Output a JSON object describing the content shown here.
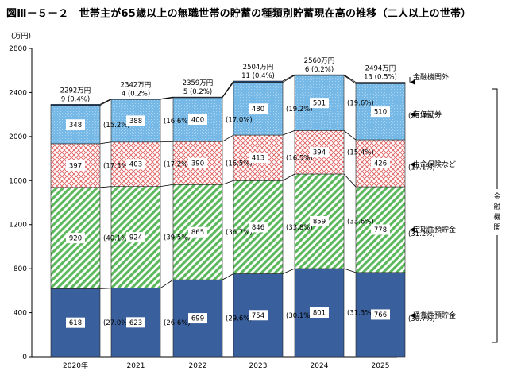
{
  "title": "図Ⅲ－５－２　世帯主が65歳以上の無職世帯の貯蓄の種類別貯蓄現在高の推移（二人以上の世帯）",
  "colors": {
    "tsuka": "#3a5f9d",
    "teiki": "#5cb85c",
    "seimei": "#e06060",
    "yuka": "#77b9e6",
    "other": "#1f4f8f",
    "line": "#000000"
  },
  "chart_data": {
    "type": "bar",
    "stacked": true,
    "unit_label": "(万円)",
    "ylim": [
      0,
      2800
    ],
    "yticks": [
      "0",
      "400",
      "800",
      "1200",
      "1600",
      "2000",
      "2400",
      "2800"
    ],
    "categories": [
      "2020年",
      "2021",
      "2022",
      "2023",
      "2024",
      "2025"
    ],
    "totals": [
      "2292万円",
      "2342万円",
      "2359万円",
      "2504万円",
      "2560万円",
      "2494万円"
    ],
    "series": [
      {
        "name": "通貨性預貯金",
        "values": [
          618,
          623,
          699,
          754,
          801,
          766
        ],
        "pct": [
          "(27.0%)",
          "(26.6%)",
          "(29.6%)",
          "(30.1%)",
          "(31.3%)",
          "(30.7%)"
        ]
      },
      {
        "name": "定期性預貯金",
        "values": [
          920,
          924,
          865,
          846,
          859,
          778
        ],
        "pct": [
          "(40.1%)",
          "(39.5%)",
          "(36.7%)",
          "(33.8%)",
          "(33.6%)",
          "(31.2%)"
        ]
      },
      {
        "name": "生命保険など",
        "values": [
          397,
          403,
          390,
          413,
          394,
          426
        ],
        "pct": [
          "(17.3%)",
          "(17.2%)",
          "(16.5%)",
          "(16.5%)",
          "(15.4%)",
          "(17.1%)"
        ]
      },
      {
        "name": "有価証券",
        "values": [
          348,
          388,
          400,
          480,
          501,
          510
        ],
        "pct": [
          "(15.2%)",
          "(16.6%)",
          "(17.0%)",
          "(19.2%)",
          "(19.6%)",
          "(20.4%)"
        ]
      },
      {
        "name": "金融機関外",
        "values": [
          9,
          4,
          5,
          11,
          6,
          13
        ],
        "pct": [
          "(0.4%)",
          "(0.2%)",
          "(0.2%)",
          "(0.4%)",
          "(0.2%)",
          "(0.5%)"
        ]
      }
    ],
    "bracket_label": "金融機関"
  }
}
